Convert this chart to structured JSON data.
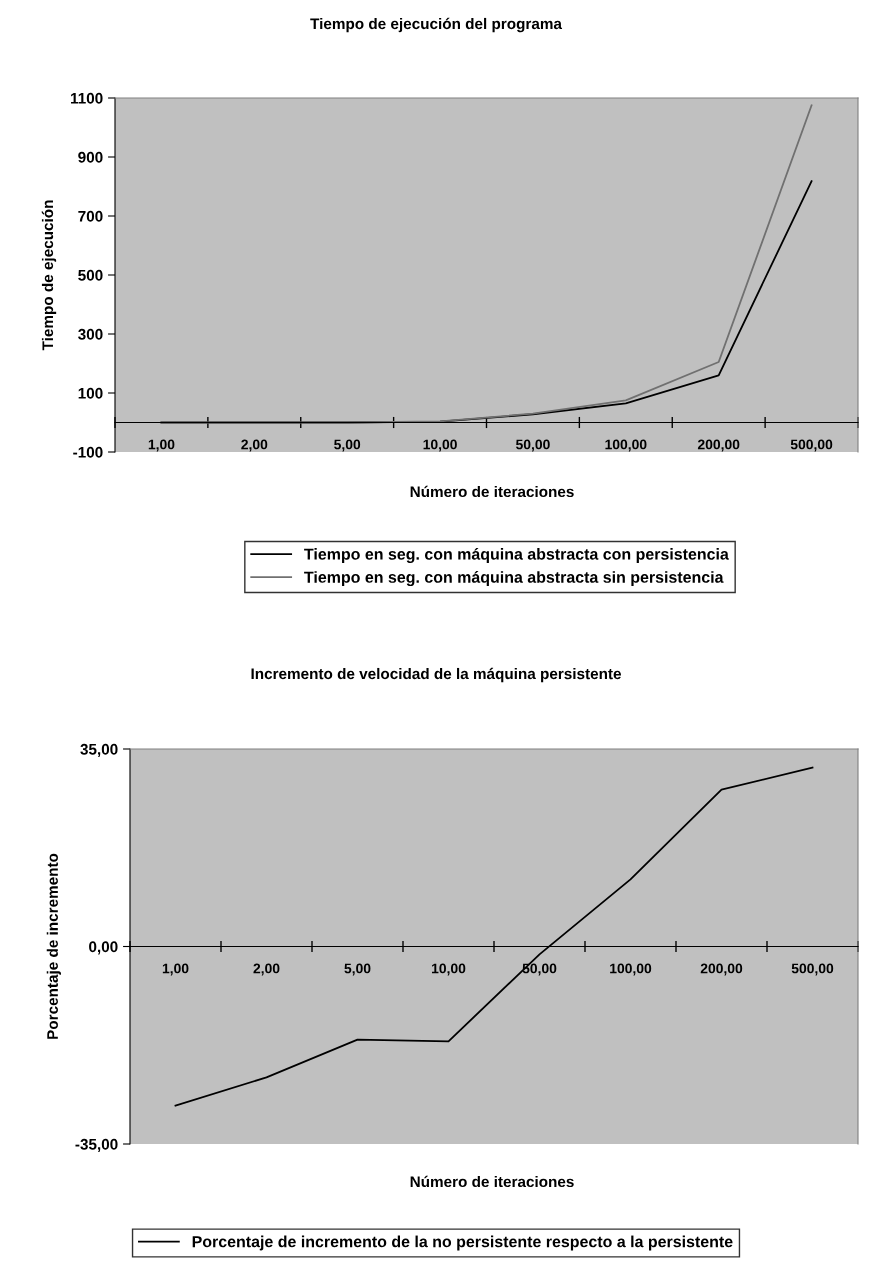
{
  "chart_data": [
    {
      "type": "line",
      "title": "Tiempo de ejecución del programa",
      "xlabel": "Número de iteraciones",
      "ylabel": "Tiempo de ejecución",
      "categories": [
        "1,00",
        "2,00",
        "5,00",
        "10,00",
        "50,00",
        "100,00",
        "200,00",
        "500,00"
      ],
      "series": [
        {
          "name": "Tiempo en seg. con máquina abstracta con persistencia",
          "color": "#000000",
          "values": [
            0,
            0,
            0,
            3,
            28,
            65,
            160,
            818
          ]
        },
        {
          "name": "Tiempo en seg. con máquina abstracta sin persistencia",
          "color": "#707070",
          "values": [
            0,
            0,
            0,
            4,
            30,
            75,
            205,
            1075
          ]
        }
      ],
      "ylim": [
        -100,
        1100
      ],
      "yticks": [
        -100,
        100,
        300,
        500,
        700,
        900,
        1100
      ],
      "grid": false,
      "legend": "bottom",
      "marker": "none",
      "line_style": "solid"
    },
    {
      "type": "line",
      "title": "Incremento de velocidad de la máquina persistente",
      "xlabel": "Número de iteraciones",
      "ylabel": "Porcentaje de incremento",
      "categories": [
        "1,00",
        "2,00",
        "5,00",
        "10,00",
        "50,00",
        "100,00",
        "200,00",
        "500,00"
      ],
      "series": [
        {
          "name": "Porcentaje de incremento de la no persistente respecto a la persistente",
          "color": "#000000",
          "values": [
            -28.2,
            -23.2,
            -16.5,
            -16.8,
            -1.4,
            11.9,
            27.8,
            31.7
          ]
        }
      ],
      "ylim": [
        -35,
        35
      ],
      "yticks": [
        {
          "value": -35,
          "label": "-35,00"
        },
        {
          "value": 0,
          "label": "0,00"
        },
        {
          "value": 35,
          "label": "35,00"
        }
      ],
      "grid": false,
      "legend": "bottom",
      "marker": "none",
      "line_style": "solid"
    }
  ]
}
